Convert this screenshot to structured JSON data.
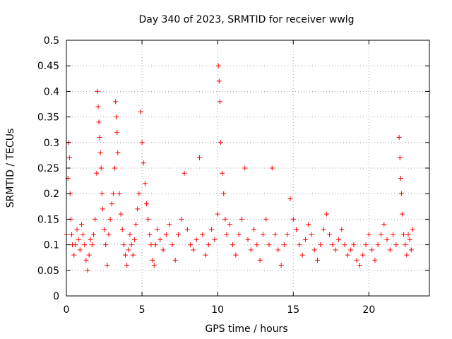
{
  "chart_data": {
    "type": "scatter",
    "title": "Day 340 of 2023, SRMTID for receiver wwlg",
    "xlabel": "GPS time / hours",
    "ylabel": "SRMTID / TECUs",
    "xlim": [
      0,
      24
    ],
    "ylim": [
      0,
      0.5
    ],
    "xticks": [
      0,
      5,
      10,
      15,
      20
    ],
    "xtick_labels": [
      "0",
      "5",
      "10",
      "15",
      "20"
    ],
    "yticks": [
      0,
      0.05,
      0.1,
      0.15,
      0.2,
      0.25,
      0.3,
      0.35,
      0.4,
      0.45,
      0.5
    ],
    "ytick_labels": [
      "0",
      "0.05",
      "0.1",
      "0.15",
      "0.2",
      "0.25",
      "0.3",
      "0.35",
      "0.4",
      "0.45",
      "0.5"
    ],
    "grid": true,
    "marker": "+",
    "color": "#ff0000",
    "series": [
      {
        "name": "SRMTID",
        "x": [
          0.0,
          0.1,
          0.15,
          0.2,
          0.25,
          0.3,
          0.35,
          0.4,
          0.5,
          0.6,
          0.7,
          0.8,
          0.9,
          1.0,
          1.1,
          1.2,
          1.3,
          1.4,
          1.5,
          1.6,
          1.7,
          1.8,
          1.9,
          2.0,
          2.05,
          2.1,
          2.15,
          2.2,
          2.25,
          2.3,
          2.35,
          2.4,
          2.5,
          2.6,
          2.7,
          2.8,
          2.9,
          3.0,
          3.1,
          3.2,
          3.25,
          3.3,
          3.35,
          3.4,
          3.5,
          3.6,
          3.7,
          3.8,
          3.9,
          4.0,
          4.1,
          4.2,
          4.3,
          4.4,
          4.5,
          4.6,
          4.7,
          4.8,
          4.9,
          5.0,
          5.1,
          5.2,
          5.3,
          5.4,
          5.5,
          5.6,
          5.7,
          5.8,
          5.9,
          6.0,
          6.2,
          6.4,
          6.6,
          6.8,
          7.0,
          7.2,
          7.4,
          7.6,
          7.8,
          8.0,
          8.2,
          8.4,
          8.6,
          8.8,
          9.0,
          9.2,
          9.4,
          9.6,
          9.8,
          10.0,
          10.05,
          10.1,
          10.15,
          10.2,
          10.3,
          10.4,
          10.5,
          10.6,
          10.8,
          11.0,
          11.2,
          11.4,
          11.6,
          11.8,
          12.0,
          12.2,
          12.4,
          12.6,
          12.8,
          13.0,
          13.2,
          13.4,
          13.6,
          13.8,
          14.0,
          14.2,
          14.4,
          14.6,
          14.8,
          15.0,
          15.2,
          15.4,
          15.6,
          15.8,
          16.0,
          16.2,
          16.4,
          16.6,
          16.8,
          17.0,
          17.2,
          17.4,
          17.6,
          17.8,
          18.0,
          18.2,
          18.4,
          18.6,
          18.8,
          19.0,
          19.2,
          19.4,
          19.6,
          19.8,
          20.0,
          20.2,
          20.4,
          20.6,
          20.8,
          21.0,
          21.2,
          21.4,
          21.6,
          21.8,
          22.0,
          22.05,
          22.1,
          22.15,
          22.2,
          22.3,
          22.4,
          22.5,
          22.6,
          22.7,
          22.8,
          22.9
        ],
        "y": [
          0.12,
          0.23,
          0.3,
          0.27,
          0.2,
          0.15,
          0.12,
          0.1,
          0.08,
          0.1,
          0.13,
          0.11,
          0.09,
          0.14,
          0.12,
          0.1,
          0.07,
          0.05,
          0.08,
          0.11,
          0.1,
          0.12,
          0.15,
          0.24,
          0.4,
          0.37,
          0.34,
          0.31,
          0.28,
          0.25,
          0.2,
          0.17,
          0.13,
          0.1,
          0.06,
          0.12,
          0.15,
          0.18,
          0.2,
          0.25,
          0.38,
          0.35,
          0.32,
          0.28,
          0.2,
          0.16,
          0.13,
          0.1,
          0.08,
          0.06,
          0.09,
          0.12,
          0.1,
          0.08,
          0.11,
          0.14,
          0.17,
          0.2,
          0.36,
          0.3,
          0.26,
          0.22,
          0.18,
          0.15,
          0.12,
          0.1,
          0.07,
          0.06,
          0.1,
          0.13,
          0.11,
          0.09,
          0.12,
          0.14,
          0.1,
          0.07,
          0.12,
          0.15,
          0.24,
          0.13,
          0.1,
          0.09,
          0.11,
          0.27,
          0.12,
          0.08,
          0.1,
          0.13,
          0.11,
          0.16,
          0.45,
          0.42,
          0.38,
          0.3,
          0.24,
          0.2,
          0.15,
          0.12,
          0.14,
          0.1,
          0.08,
          0.12,
          0.15,
          0.25,
          0.11,
          0.09,
          0.13,
          0.1,
          0.07,
          0.12,
          0.15,
          0.1,
          0.25,
          0.12,
          0.09,
          0.06,
          0.1,
          0.12,
          0.19,
          0.15,
          0.13,
          0.1,
          0.08,
          0.11,
          0.14,
          0.12,
          0.09,
          0.07,
          0.1,
          0.13,
          0.16,
          0.12,
          0.1,
          0.09,
          0.11,
          0.13,
          0.1,
          0.08,
          0.09,
          0.1,
          0.07,
          0.06,
          0.08,
          0.1,
          0.12,
          0.09,
          0.07,
          0.1,
          0.12,
          0.14,
          0.11,
          0.09,
          0.12,
          0.1,
          0.31,
          0.27,
          0.23,
          0.2,
          0.16,
          0.12,
          0.1,
          0.08,
          0.12,
          0.11,
          0.09,
          0.13
        ]
      }
    ]
  }
}
